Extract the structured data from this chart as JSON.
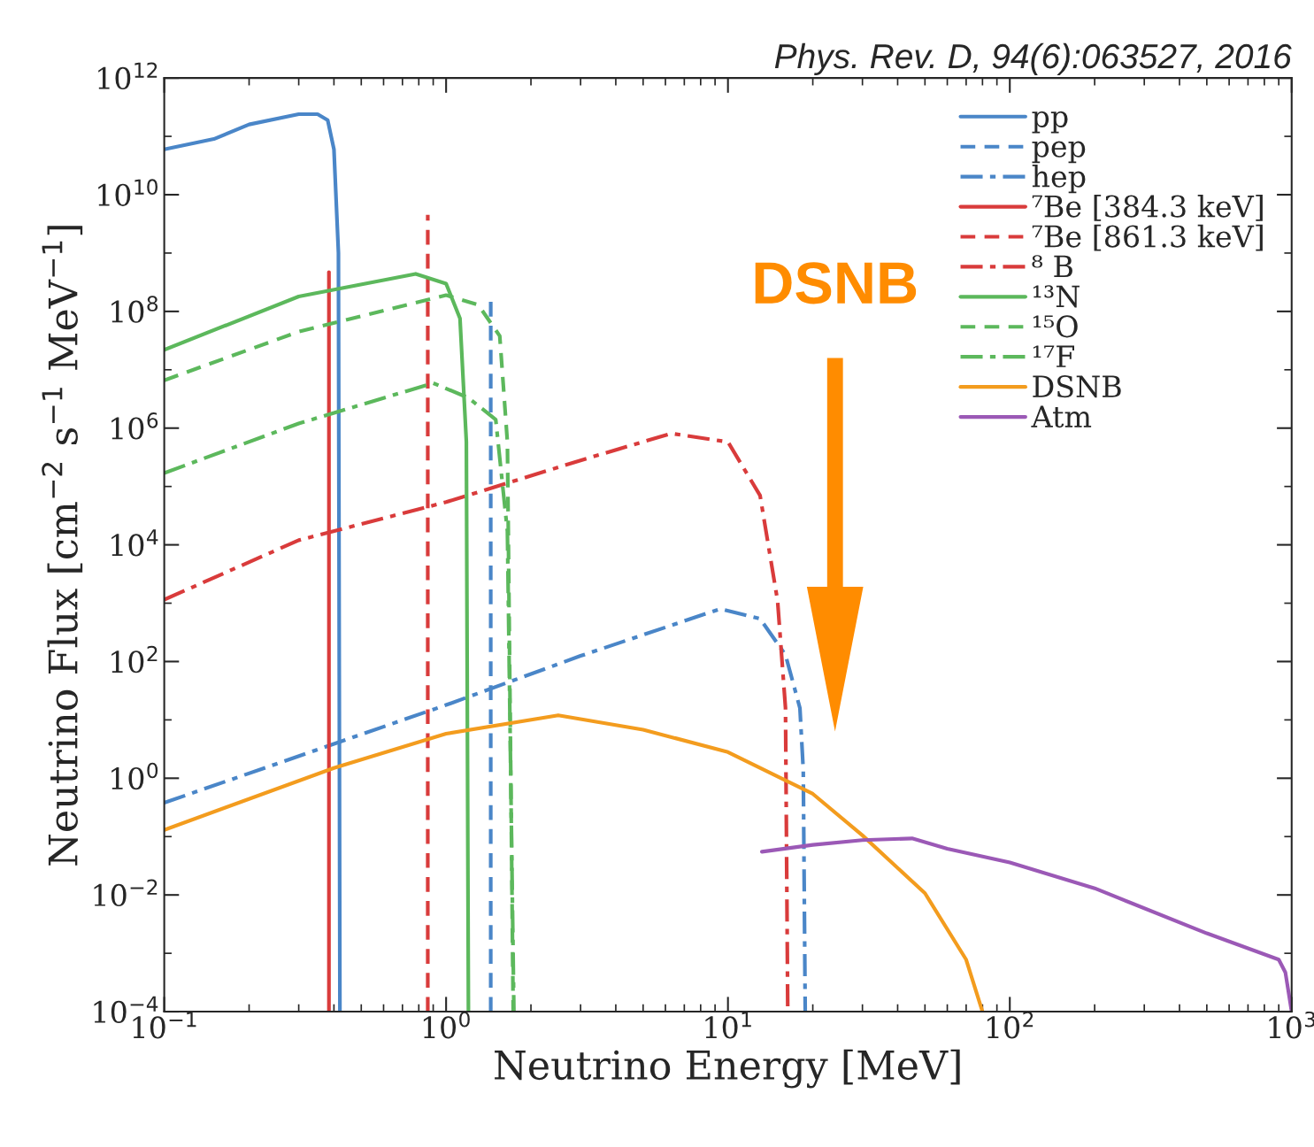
{
  "chart_data": {
    "type": "line",
    "title": "Phys. Rev. D, 94(6):063527, 2016",
    "xlabel": "Neutrino Energy [MeV]",
    "ylabel": "Neutrino Flux [cm$^{−2}$ s$^{−1}$ MeV$^{−1}$]",
    "log": "xy",
    "grid": false,
    "legend": "top right",
    "marker": "none",
    "xlim": [
      0.1,
      1000
    ],
    "xticks": [
      {
        "value": 0.1,
        "label": "10$^{−1}$"
      },
      {
        "value": 1,
        "label": "10$^{0}$"
      },
      {
        "value": 10,
        "label": "10$^{1}$"
      },
      {
        "value": 100,
        "label": "10$^{2}$"
      },
      {
        "value": 1000,
        "label": "10$^{3}$"
      }
    ],
    "ylim": [
      0.0001,
      1000000000000.0
    ],
    "yticks": [
      {
        "value": 0.0001,
        "label": "10$^{−4}$"
      },
      {
        "value": 0.01,
        "label": "10$^{−2}$"
      },
      {
        "value": 1,
        "label": "10$^{0}$"
      },
      {
        "value": 100,
        "label": "10$^{2}$"
      },
      {
        "value": 10000,
        "label": "10$^{4}$"
      },
      {
        "value": 1000000,
        "label": "10$^{6}$"
      },
      {
        "value": 100000000,
        "label": "10$^{8}$"
      },
      {
        "value": 10000000000,
        "label": "10$^{10}$"
      },
      {
        "value": 1000000000000,
        "label": "10$^{12}$"
      }
    ],
    "annotations": [
      "DSNB"
    ],
    "series": [
      {
        "name": "pp",
        "color": "#4a86c8",
        "line_style": "solid",
        "x": [
          0.1,
          0.15,
          0.2,
          0.3,
          0.35,
          0.38,
          0.4,
          0.415,
          0.42
        ],
        "values": [
          60000000000.0,
          90000000000.0,
          160000000000.0,
          240000000000.0,
          240000000000.0,
          190000000000.0,
          60000000000.0,
          1000000000.0,
          0.0001
        ]
      },
      {
        "name": "pep",
        "color": "#4a86c8",
        "line_style": "dashed",
        "x": [
          1.44,
          1.44
        ],
        "values": [
          0.0001,
          160000000.0
        ]
      },
      {
        "name": "hep",
        "color": "#4a86c8",
        "line_style": "dashdot",
        "x": [
          0.1,
          1,
          3,
          9.4,
          13,
          16,
          18,
          18.5,
          18.8
        ],
        "values": [
          0.38,
          18,
          125,
          800,
          540,
          130,
          16,
          1.4,
          0.0001
        ]
      },
      {
        "name": "⁷Be [384.3 keV]",
        "color": "#d93b3b",
        "line_style": "solid",
        "x": [
          0.384,
          0.384
        ],
        "values": [
          0.0001,
          470000000.0
        ]
      },
      {
        "name": "⁷Be [861.3 keV]",
        "color": "#d93b3b",
        "line_style": "dashed",
        "x": [
          0.861,
          0.861
        ],
        "values": [
          0.0001,
          4500000000.0
        ]
      },
      {
        "name": "⁸ B",
        "color": "#d93b3b",
        "line_style": "dashdot",
        "x": [
          0.1,
          0.3,
          1,
          3,
          6.3,
          10,
          13,
          15,
          16,
          16.3
        ],
        "values": [
          1150,
          12000,
          54000,
          280000,
          810000,
          580000,
          70000,
          1100,
          16,
          0.0001
        ]
      },
      {
        "name": "¹³N",
        "color": "#5cb85c",
        "line_style": "solid",
        "x": [
          0.1,
          0.3,
          0.78,
          1.0,
          1.12,
          1.18,
          1.2
        ],
        "values": [
          22000000.0,
          180000000.0,
          440000000.0,
          300000000.0,
          76000000.0,
          580000,
          0.0001
        ]
      },
      {
        "name": "¹⁵O",
        "color": "#5cb85c",
        "line_style": "dashed",
        "x": [
          0.1,
          0.3,
          1.0,
          1.3,
          1.55,
          1.65,
          1.73
        ],
        "values": [
          6600000.0,
          45000000.0,
          190000000.0,
          130000000.0,
          38000000.0,
          580000,
          0.0001
        ]
      },
      {
        "name": "¹⁷F",
        "color": "#5cb85c",
        "line_style": "dashdot",
        "x": [
          0.1,
          0.3,
          0.9,
          1.2,
          1.5,
          1.65,
          1.74
        ],
        "values": [
          170000,
          1200000.0,
          5900000.0,
          3300000.0,
          1400000.0,
          17000,
          0.0001
        ]
      },
      {
        "name": "DSNB",
        "color": "#f39c1e",
        "line_style": "solid",
        "x": [
          0.1,
          0.4,
          1,
          2.5,
          5,
          10,
          20,
          30,
          50,
          70,
          80
        ],
        "values": [
          0.13,
          1.5,
          5.8,
          12,
          6.8,
          2.8,
          0.54,
          0.105,
          0.0107,
          0.00078,
          0.0001
        ]
      },
      {
        "name": "Atm",
        "color": "#9b59b6",
        "line_style": "solid",
        "x": [
          13.2,
          20,
          30,
          45,
          60,
          100,
          200,
          500,
          900,
          950,
          1000
        ],
        "values": [
          0.055,
          0.072,
          0.087,
          0.093,
          0.062,
          0.036,
          0.013,
          0.0022,
          0.00078,
          0.00047,
          0.0001
        ]
      }
    ]
  }
}
